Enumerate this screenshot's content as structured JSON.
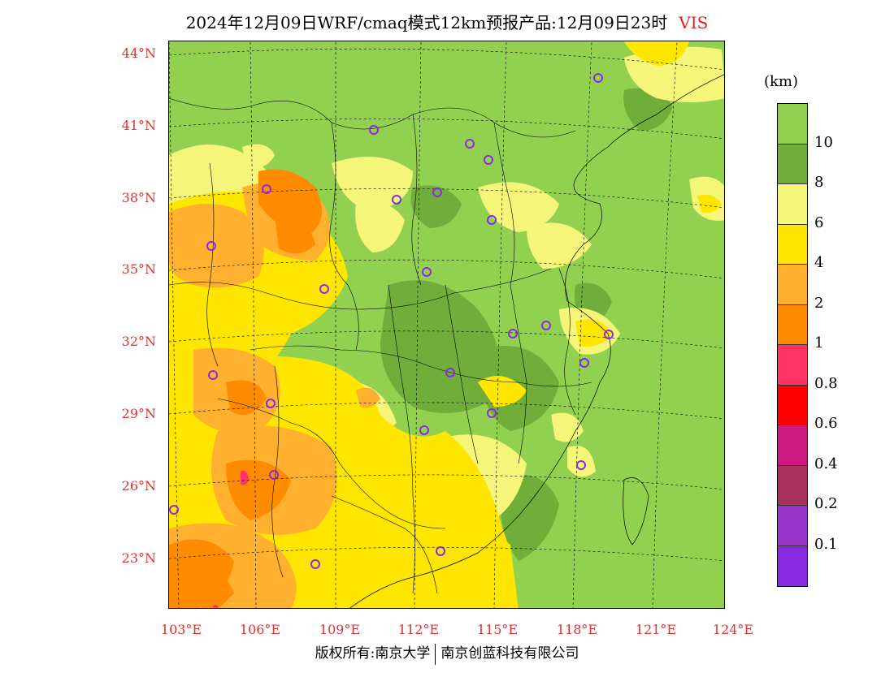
{
  "title": {
    "main": "2024年12月09日WRF/cmaq模式12km预报产品:12月09日23时",
    "variable": "VIS"
  },
  "colorbar": {
    "unit": "(km)",
    "colors": [
      "#92d050",
      "#70ad3a",
      "#f5f57a",
      "#ffe600",
      "#ffb02e",
      "#ff8c00",
      "#ff3366",
      "#ff0000",
      "#cc1a80",
      "#a8305c",
      "#9933cc",
      "#8a2be2"
    ],
    "labels": [
      "10",
      "8",
      "6",
      "4",
      "2",
      "1",
      "0.8",
      "0.6",
      "0.4",
      "0.2",
      "0.1"
    ]
  },
  "lat_labels": [
    "44°N",
    "41°N",
    "38°N",
    "35°N",
    "32°N",
    "29°N",
    "26°N",
    "23°N"
  ],
  "lon_labels": [
    "103°E",
    "106°E",
    "109°E",
    "112°E",
    "115°E",
    "118°E",
    "121°E",
    "124°E"
  ],
  "footer": {
    "left": "版权所有:南京大学",
    "right": "南京创蓝科技有限公司"
  }
}
